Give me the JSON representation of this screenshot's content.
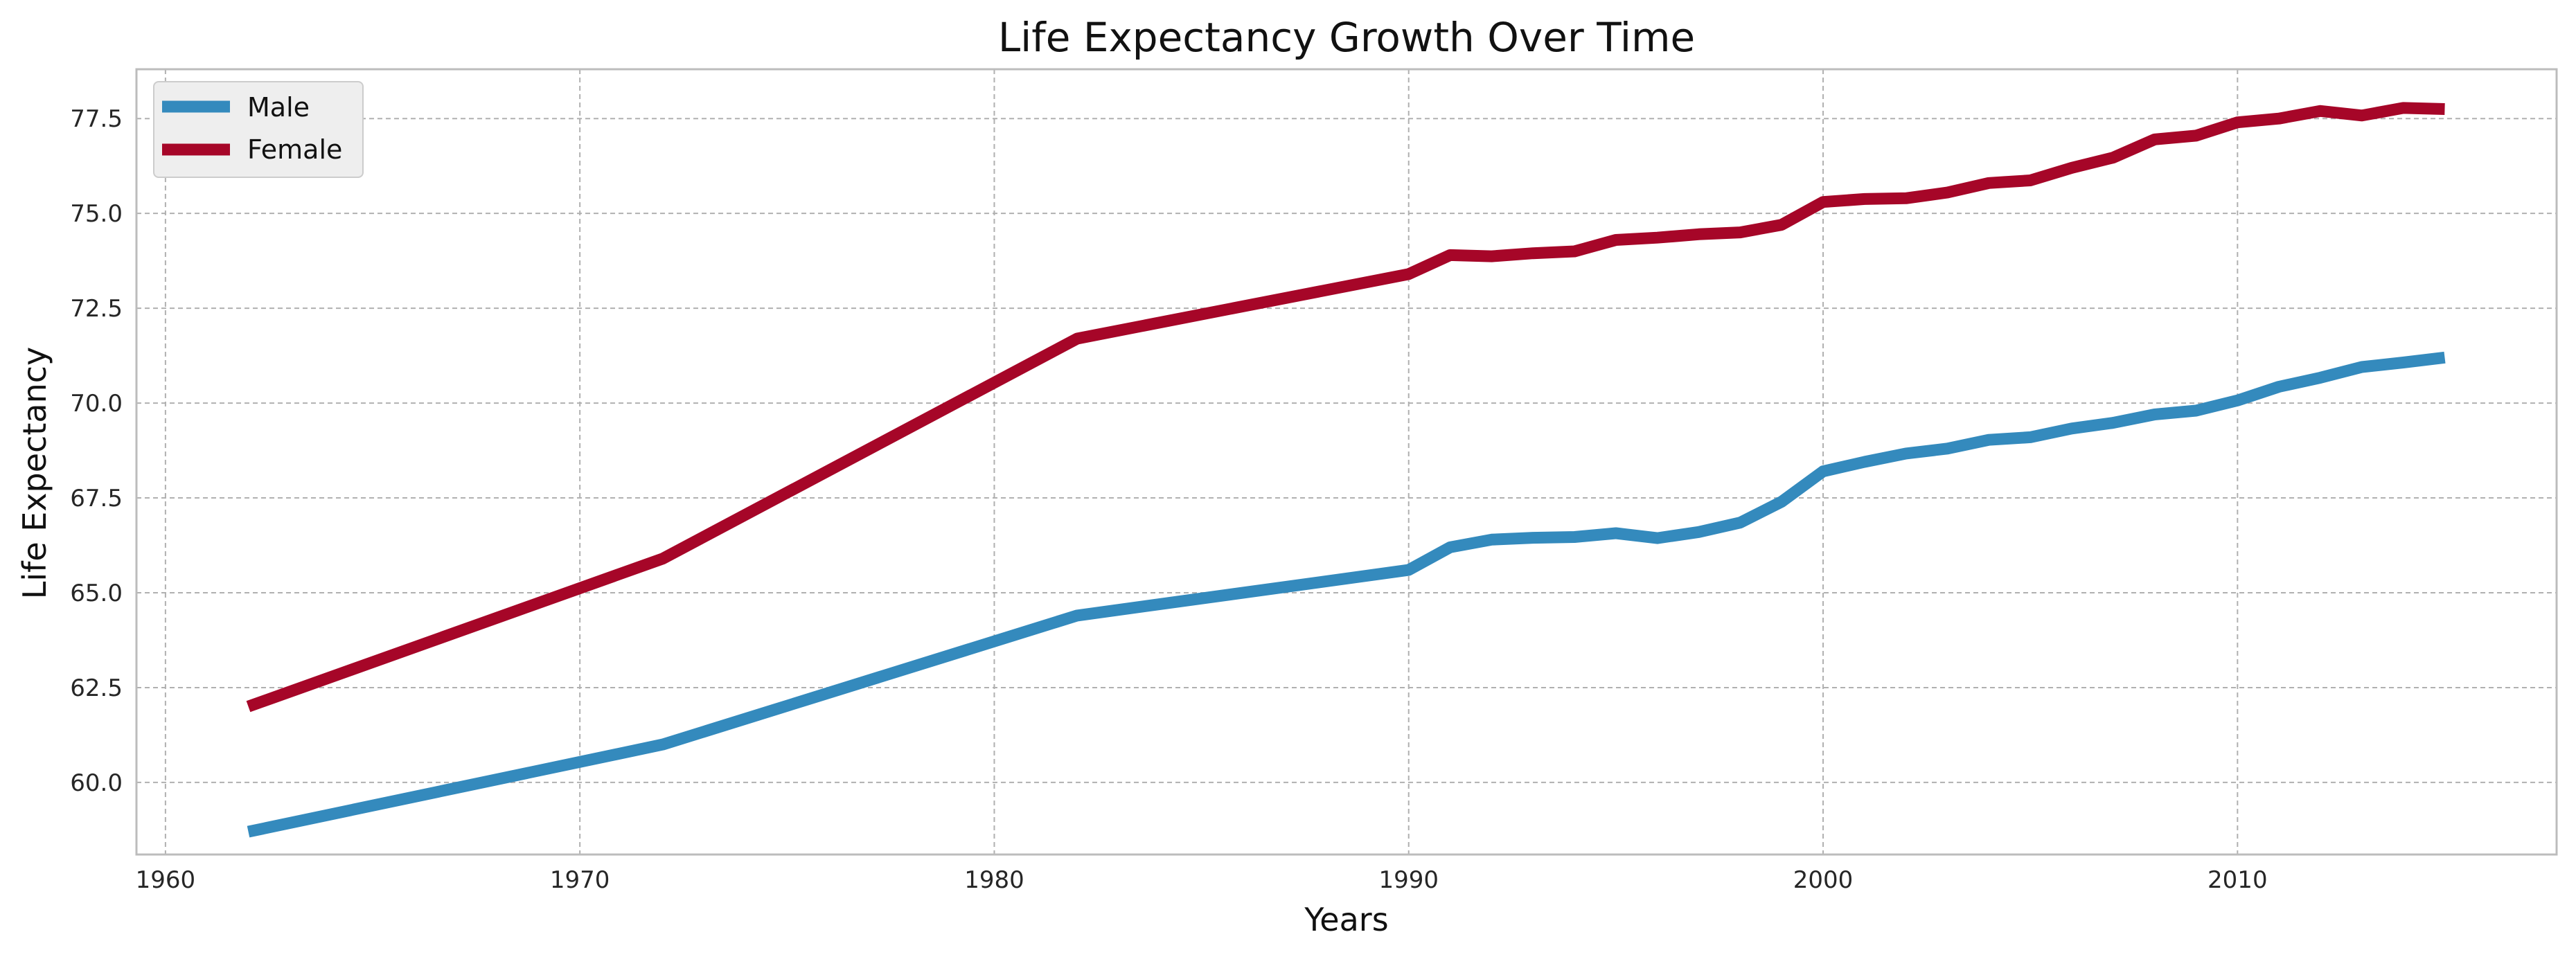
{
  "chart_data": {
    "type": "line",
    "title": "Life Expectancy Growth Over Time",
    "xlabel": "Years",
    "ylabel": "Life Expectancy",
    "xlim": [
      1959.3,
      2017.7
    ],
    "ylim": [
      58.1,
      78.8
    ],
    "x_ticks": [
      "1960",
      "1970",
      "1980",
      "1990",
      "2000",
      "2010"
    ],
    "y_ticks": [
      "60.0",
      "62.5",
      "65.0",
      "67.5",
      "70.0",
      "72.5",
      "75.0",
      "77.5"
    ],
    "grid": true,
    "legend_position": "top-left",
    "series": [
      {
        "name": "Male",
        "color": "#348abd",
        "points": [
          [
            1962,
            58.7
          ],
          [
            1972,
            61.0
          ],
          [
            1982,
            64.4
          ],
          [
            1990,
            65.6
          ],
          [
            1991,
            66.2
          ],
          [
            1992,
            66.4
          ],
          [
            1993,
            66.45
          ],
          [
            1994,
            66.47
          ],
          [
            1995,
            66.57
          ],
          [
            1996,
            66.44
          ],
          [
            1997,
            66.6
          ],
          [
            1998,
            66.85
          ],
          [
            1999,
            67.4
          ],
          [
            2000,
            68.2
          ],
          [
            2001,
            68.45
          ],
          [
            2002,
            68.67
          ],
          [
            2003,
            68.8
          ],
          [
            2004,
            69.03
          ],
          [
            2005,
            69.1
          ],
          [
            2006,
            69.33
          ],
          [
            2007,
            69.48
          ],
          [
            2008,
            69.7
          ],
          [
            2009,
            69.8
          ],
          [
            2010,
            70.07
          ],
          [
            2011,
            70.43
          ],
          [
            2012,
            70.67
          ],
          [
            2013,
            70.95
          ],
          [
            2014,
            71.07
          ],
          [
            2015,
            71.2
          ]
        ]
      },
      {
        "name": "Female",
        "color": "#a60628",
        "points": [
          [
            1962,
            62.0
          ],
          [
            1972,
            65.9
          ],
          [
            1982,
            71.7
          ],
          [
            1990,
            73.4
          ],
          [
            1991,
            73.9
          ],
          [
            1992,
            73.87
          ],
          [
            1993,
            73.95
          ],
          [
            1994,
            74.0
          ],
          [
            1995,
            74.3
          ],
          [
            1996,
            74.36
          ],
          [
            1997,
            74.45
          ],
          [
            1998,
            74.5
          ],
          [
            1999,
            74.7
          ],
          [
            2000,
            75.3
          ],
          [
            2001,
            75.38
          ],
          [
            2002,
            75.4
          ],
          [
            2003,
            75.55
          ],
          [
            2004,
            75.8
          ],
          [
            2005,
            75.87
          ],
          [
            2006,
            76.2
          ],
          [
            2007,
            76.47
          ],
          [
            2008,
            76.95
          ],
          [
            2009,
            77.05
          ],
          [
            2010,
            77.4
          ],
          [
            2011,
            77.5
          ],
          [
            2012,
            77.7
          ],
          [
            2013,
            77.58
          ],
          [
            2014,
            77.78
          ],
          [
            2015,
            77.75
          ]
        ]
      }
    ]
  },
  "colors": {
    "background": "#ffffff",
    "plot_background": "#ffffff",
    "grid": "#b0b0b0",
    "frame": "#bcbcbc",
    "legend_background": "#eeeeee"
  }
}
